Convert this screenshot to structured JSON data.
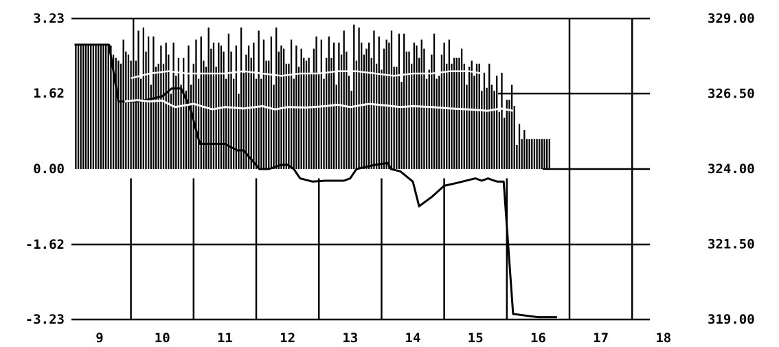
{
  "chart_data": {
    "type": "line",
    "title": "",
    "xlabel": "",
    "ylabel": "",
    "grid": true,
    "xlim": [
      8.6,
      18.4
    ],
    "ylim": [
      -3.23,
      3.23
    ],
    "y2lim": [
      319.0,
      329.0
    ],
    "x_ticks": [
      "9",
      "10",
      "11",
      "12",
      "13",
      "14",
      "15",
      "16",
      "17",
      "18"
    ],
    "y_ticks": [
      "3.23",
      "1.62",
      "0.00",
      "-1.62",
      "-3.23"
    ],
    "y2_ticks": [
      "329.00",
      "326.50",
      "324.00",
      "321.50",
      "319.00"
    ],
    "series": [
      {
        "type": "bar",
        "axis": "right",
        "baseline": 324.0,
        "x": [
          8.62,
          8.66,
          8.7,
          8.74,
          8.78,
          8.82,
          8.86,
          8.9,
          8.94,
          8.98,
          9.02,
          9.06,
          9.1,
          9.14,
          9.18,
          9.22,
          9.26,
          9.3,
          9.34,
          9.38,
          9.42,
          9.46,
          9.5,
          9.54,
          9.58,
          9.62,
          9.66,
          9.7,
          9.74,
          9.78,
          9.82,
          9.86,
          9.9,
          9.94,
          9.98,
          10.02,
          10.06,
          10.1,
          10.14,
          10.18,
          10.22,
          10.26,
          10.3,
          10.34,
          10.38,
          10.42,
          10.46,
          10.5,
          10.54,
          10.58,
          10.62,
          10.66,
          10.7,
          10.74,
          10.78,
          10.82,
          10.86,
          10.9,
          10.94,
          10.98,
          11.02,
          11.06,
          11.1,
          11.14,
          11.18,
          11.22,
          11.26,
          11.3,
          11.34,
          11.38,
          11.42,
          11.46,
          11.5,
          11.54,
          11.58,
          11.62,
          11.66,
          11.7,
          11.74,
          11.78,
          11.82,
          11.86,
          11.9,
          11.94,
          11.98,
          12.02,
          12.06,
          12.1,
          12.14,
          12.18,
          12.22,
          12.26,
          12.3,
          12.34,
          12.38,
          12.42,
          12.46,
          12.5,
          12.54,
          12.58,
          12.62,
          12.66,
          12.7,
          12.74,
          12.78,
          12.82,
          12.86,
          12.9,
          12.94,
          12.98,
          13.02,
          13.06,
          13.1,
          13.14,
          13.18,
          13.22,
          13.26,
          13.3,
          13.34,
          13.38,
          13.42,
          13.46,
          13.5,
          13.54,
          13.58,
          13.62,
          13.66,
          13.7,
          13.74,
          13.78,
          13.82,
          13.86,
          13.9,
          13.94,
          13.98,
          14.02,
          14.06,
          14.1,
          14.14,
          14.18,
          14.22,
          14.26,
          14.3,
          14.34,
          14.38,
          14.42,
          14.46,
          14.5,
          14.54,
          14.58,
          14.62,
          14.66,
          14.7,
          14.74,
          14.78,
          14.82,
          14.86,
          14.9,
          14.94,
          14.98,
          15.02,
          15.06,
          15.1,
          15.14,
          15.18,
          15.22,
          15.26,
          15.3,
          15.34,
          15.38,
          15.42,
          15.46,
          15.5,
          15.54,
          15.58,
          15.62,
          15.66,
          15.7,
          15.74,
          15.78,
          15.82,
          15.86,
          15.9,
          15.94,
          15.98,
          16.02,
          16.06,
          16.1,
          16.14,
          16.18
        ],
        "values": [
          328.1,
          328.1,
          328.1,
          328.1,
          328.1,
          328.1,
          328.1,
          328.1,
          328.1,
          328.1,
          328.1,
          328.1,
          328.1,
          328.1,
          328.1,
          327.8,
          327.7,
          327.6,
          327.5,
          328.3,
          327.9,
          327.8,
          327.6,
          329.0,
          327.6,
          328.6,
          327.0,
          328.7,
          327.9,
          328.4,
          326.8,
          328.4,
          327.4,
          327.5,
          328.1,
          327.5,
          328.2,
          327.8,
          326.5,
          328.2,
          327.1,
          327.7,
          326.8,
          327.7,
          326.6,
          328.1,
          326.8,
          327.5,
          328.3,
          327.0,
          328.4,
          327.6,
          327.4,
          328.7,
          328.0,
          328.2,
          327.4,
          328.2,
          328.1,
          327.9,
          327.0,
          328.5,
          327.9,
          327.0,
          328.1,
          326.5,
          328.7,
          327.2,
          327.8,
          328.1,
          327.7,
          328.2,
          327.0,
          328.6,
          327.0,
          328.3,
          327.6,
          327.6,
          328.4,
          326.8,
          328.7,
          327.9,
          328.1,
          328.0,
          327.5,
          327.5,
          328.3,
          327.0,
          328.1,
          327.4,
          328.0,
          327.7,
          327.6,
          327.7,
          327.2,
          328.0,
          328.4,
          327.2,
          328.3,
          327.0,
          327.7,
          328.4,
          327.7,
          328.2,
          326.8,
          328.2,
          327.8,
          328.6,
          327.9,
          327.1,
          326.6,
          328.8,
          327.6,
          328.7,
          328.2,
          327.8,
          328.0,
          328.2,
          327.7,
          328.6,
          327.5,
          328.4,
          327.3,
          328.0,
          328.3,
          328.2,
          328.6,
          327.4,
          327.4,
          328.5,
          326.9,
          328.5,
          327.9,
          327.9,
          327.5,
          328.2,
          328.1,
          327.7,
          328.3,
          328.0,
          327.0,
          327.3,
          327.8,
          328.5,
          327.0,
          327.1,
          327.8,
          328.2,
          327.5,
          328.3,
          327.5,
          327.7,
          327.7,
          327.7,
          328.0,
          327.5,
          326.8,
          327.4,
          327.6,
          327.1,
          327.5,
          327.5,
          326.6,
          327.2,
          326.7,
          327.5,
          326.8,
          326.6,
          327.1,
          325.9,
          327.2,
          325.7,
          326.3,
          326.3,
          326.8,
          326.1,
          324.8,
          325.5,
          325.0,
          325.3,
          325.0,
          325.0,
          325.0,
          325.0,
          325.0,
          325.0,
          325.0,
          325.0,
          325.0,
          325.0
        ]
      },
      {
        "type": "line",
        "axis": "left",
        "x": [
          8.6,
          9.0,
          9.15,
          9.3,
          9.45,
          9.6,
          9.8,
          10.0,
          10.15,
          10.3,
          10.45,
          10.6,
          10.8,
          11.0,
          11.2,
          11.3,
          11.55,
          11.7,
          11.9,
          12.0,
          12.1,
          12.2,
          12.4,
          12.6,
          12.8,
          12.9,
          13.0,
          13.1,
          13.4,
          13.6,
          13.65,
          13.8,
          14.0,
          14.1,
          14.3,
          14.5,
          14.7,
          15.0,
          15.1,
          15.2,
          15.3,
          15.35,
          15.4,
          15.45,
          15.6,
          16.0,
          16.3
        ],
        "values": [
          2.67,
          2.67,
          2.67,
          1.45,
          1.45,
          1.45,
          1.5,
          1.56,
          1.73,
          1.73,
          1.3,
          0.54,
          0.54,
          0.54,
          0.4,
          0.4,
          0.0,
          0.0,
          0.09,
          0.09,
          0.0,
          -0.2,
          -0.27,
          -0.25,
          -0.25,
          -0.25,
          -0.2,
          0.0,
          0.09,
          0.13,
          0.0,
          -0.05,
          -0.27,
          -0.8,
          -0.6,
          -0.36,
          -0.3,
          -0.2,
          -0.25,
          -0.2,
          -0.25,
          -0.27,
          -0.27,
          -0.27,
          -3.11,
          -3.18,
          -3.18
        ]
      },
      {
        "type": "line",
        "axis": "left",
        "x": [
          9.4,
          9.6,
          9.8,
          10.0,
          10.2,
          10.5,
          10.8,
          11.0,
          11.3,
          11.6,
          11.8,
          12.0,
          12.3,
          12.6,
          12.8,
          13.0,
          13.3,
          13.6,
          13.8,
          14.0,
          14.3,
          14.6,
          14.9,
          15.2,
          15.4,
          15.6
        ],
        "values": [
          1.45,
          1.48,
          1.45,
          1.47,
          1.33,
          1.4,
          1.28,
          1.33,
          1.3,
          1.35,
          1.28,
          1.33,
          1.32,
          1.35,
          1.38,
          1.33,
          1.4,
          1.36,
          1.33,
          1.35,
          1.33,
          1.3,
          1.28,
          1.25,
          1.3,
          1.25
        ]
      },
      {
        "type": "line",
        "axis": "left",
        "x": [
          9.5,
          9.8,
          10.1,
          10.4,
          10.7,
          11.0,
          11.3,
          11.6,
          11.9,
          12.2,
          12.5,
          12.8,
          13.1,
          13.4,
          13.7,
          14.0,
          14.3,
          14.6,
          14.9,
          15.1
        ],
        "values": [
          1.95,
          2.05,
          2.1,
          2.05,
          2.05,
          2.05,
          2.1,
          2.05,
          2.0,
          2.05,
          2.05,
          2.1,
          2.1,
          2.05,
          2.0,
          2.05,
          2.05,
          2.1,
          2.1,
          2.05
        ]
      }
    ]
  }
}
